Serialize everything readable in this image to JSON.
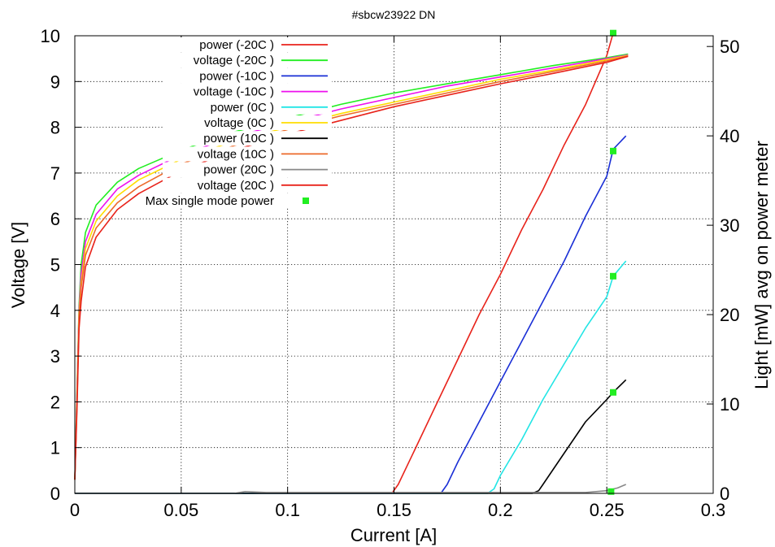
{
  "chart_data": {
    "type": "line",
    "title": "#sbcw23922 DN",
    "xlabel": "Current [A]",
    "ylabel": "Voltage [V]",
    "y2label": "Light [mW] avg on power meter",
    "xlim": [
      0,
      0.3
    ],
    "ylim": [
      0,
      10
    ],
    "y2lim": [
      0,
      51.2
    ],
    "x_ticks": [
      0,
      0.05,
      0.1,
      0.15,
      0.2,
      0.25,
      0.3
    ],
    "x_tick_labels": [
      "0",
      "0.05",
      "0.1",
      "0.15",
      "0.2",
      "0.25",
      "0.3"
    ],
    "y_ticks": [
      0,
      1,
      2,
      3,
      4,
      5,
      6,
      7,
      8,
      9,
      10
    ],
    "y_tick_labels": [
      "0",
      "1",
      "2",
      "3",
      "4",
      "5",
      "6",
      "7",
      "8",
      "9",
      "10"
    ],
    "y2_ticks": [
      0,
      10,
      20,
      30,
      40,
      50
    ],
    "y2_tick_labels": [
      "0",
      "10",
      "20",
      "30",
      "40",
      "50"
    ],
    "grid": true,
    "legend_position": "top-center",
    "series": [
      {
        "name": "power (-20C )",
        "axis": "y2",
        "color": "#e8231b",
        "x": [
          0,
          0.149,
          0.152,
          0.16,
          0.17,
          0.18,
          0.19,
          0.2,
          0.21,
          0.22,
          0.23,
          0.24,
          0.25,
          0.253
        ],
        "y": [
          0,
          0,
          1,
          5,
          10,
          15,
          20,
          24.5,
          29.5,
          34,
          39,
          43.5,
          49,
          51.5
        ]
      },
      {
        "name": "voltage (-20C )",
        "axis": "y",
        "color": "#22ee22",
        "x": [
          0,
          0.001,
          0.002,
          0.003,
          0.005,
          0.01,
          0.02,
          0.03,
          0.05,
          0.075,
          0.1,
          0.125,
          0.15,
          0.175,
          0.2,
          0.225,
          0.25,
          0.26
        ],
        "y": [
          0.3,
          2.2,
          4.1,
          5.0,
          5.7,
          6.3,
          6.8,
          7.1,
          7.5,
          7.9,
          8.2,
          8.5,
          8.75,
          8.95,
          9.15,
          9.35,
          9.52,
          9.6
        ]
      },
      {
        "name": "power (-10C )",
        "axis": "y2",
        "color": "#1a2fd6",
        "x": [
          0,
          0.172,
          0.175,
          0.18,
          0.19,
          0.2,
          0.21,
          0.22,
          0.23,
          0.24,
          0.25,
          0.253,
          0.259
        ],
        "y": [
          0,
          0,
          1,
          3.5,
          8,
          12.5,
          17,
          21.5,
          26,
          31,
          35.5,
          38.5,
          40
        ]
      },
      {
        "name": "voltage (-10C )",
        "axis": "y",
        "color": "#ee11ee",
        "x": [
          0,
          0.001,
          0.002,
          0.003,
          0.005,
          0.01,
          0.02,
          0.03,
          0.05,
          0.075,
          0.1,
          0.125,
          0.15,
          0.175,
          0.2,
          0.225,
          0.25,
          0.26
        ],
        "y": [
          0.3,
          2.1,
          4.0,
          4.8,
          5.5,
          6.1,
          6.65,
          6.95,
          7.4,
          7.8,
          8.1,
          8.4,
          8.65,
          8.9,
          9.1,
          9.3,
          9.5,
          9.58
        ]
      },
      {
        "name": "power (0C )",
        "axis": "y2",
        "color": "#22e5e5",
        "x": [
          0,
          0.194,
          0.197,
          0.2,
          0.21,
          0.22,
          0.23,
          0.24,
          0.25,
          0.253,
          0.259
        ],
        "y": [
          0,
          0,
          0.5,
          2,
          6,
          10.5,
          14.5,
          18.5,
          22,
          24.3,
          26
        ]
      },
      {
        "name": "voltage (0C )",
        "axis": "y",
        "color": "#ffdd00",
        "x": [
          0,
          0.001,
          0.002,
          0.003,
          0.005,
          0.01,
          0.02,
          0.03,
          0.05,
          0.075,
          0.1,
          0.125,
          0.15,
          0.175,
          0.2,
          0.225,
          0.25,
          0.26
        ],
        "y": [
          0.3,
          2.0,
          3.9,
          4.6,
          5.35,
          5.95,
          6.5,
          6.85,
          7.3,
          7.7,
          8.0,
          8.3,
          8.55,
          8.8,
          9.05,
          9.25,
          9.48,
          9.57
        ]
      },
      {
        "name": "power (10C )",
        "axis": "y2",
        "color": "#000000",
        "x": [
          0,
          0.215,
          0.218,
          0.22,
          0.23,
          0.24,
          0.25,
          0.253,
          0.259
        ],
        "y": [
          0,
          0,
          0.3,
          1,
          4.5,
          8,
          10.5,
          11.3,
          12.7
        ]
      },
      {
        "name": "voltage (10C )",
        "axis": "y",
        "color": "#ec6a2a",
        "x": [
          0,
          0.001,
          0.002,
          0.003,
          0.005,
          0.01,
          0.02,
          0.03,
          0.05,
          0.075,
          0.1,
          0.125,
          0.15,
          0.175,
          0.2,
          0.225,
          0.25,
          0.26
        ],
        "y": [
          0.3,
          1.9,
          3.8,
          4.5,
          5.2,
          5.8,
          6.35,
          6.7,
          7.2,
          7.6,
          7.95,
          8.25,
          8.5,
          8.75,
          9.0,
          9.22,
          9.45,
          9.56
        ]
      },
      {
        "name": "power (20C )",
        "axis": "y2",
        "color": "#888888",
        "x": [
          0,
          0.075,
          0.08,
          0.09,
          0.1,
          0.24,
          0.25,
          0.255,
          0.259
        ],
        "y": [
          0,
          0,
          0.2,
          0.1,
          0.1,
          0.1,
          0.3,
          0.6,
          1.0
        ]
      },
      {
        "name": "voltage (20C )",
        "axis": "y",
        "color": "#e8231b",
        "x": [
          0,
          0.001,
          0.002,
          0.003,
          0.005,
          0.01,
          0.02,
          0.03,
          0.05,
          0.075,
          0.1,
          0.125,
          0.15,
          0.175,
          0.2,
          0.225,
          0.25,
          0.26
        ],
        "y": [
          0.3,
          1.8,
          3.6,
          4.2,
          4.95,
          5.6,
          6.2,
          6.55,
          7.05,
          7.5,
          7.85,
          8.15,
          8.45,
          8.7,
          8.95,
          9.18,
          9.42,
          9.55
        ]
      },
      {
        "name": "Max single mode power",
        "axis": "y2",
        "color": "#22ee22",
        "marker": "square",
        "line": false,
        "x": [
          0.253,
          0.253,
          0.253,
          0.253,
          0.252
        ],
        "y": [
          51.5,
          38.3,
          24.3,
          11.3,
          0.2
        ]
      }
    ]
  }
}
